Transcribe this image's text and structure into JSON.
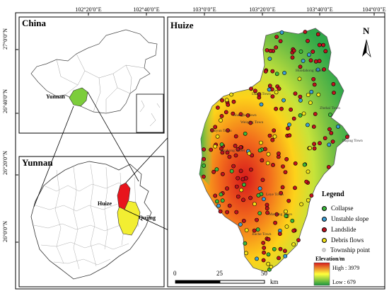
{
  "coords_top": [
    "102°20′0″E",
    "102°40′0″E",
    "103°0′0″E",
    "103°20′0″E",
    "103°40′0″E",
    "104°0′0″E"
  ],
  "coords_left": [
    "27°0′0″N",
    "26°40′0″N",
    "26°20′0″N",
    "26°0′0″N"
  ],
  "panels": {
    "china": {
      "title": "China",
      "region_label": "Yunnan"
    },
    "yunnan": {
      "title": "Yunnan",
      "county_label": "Huize",
      "city_label": "Qujing"
    },
    "huize": {
      "title": "Huize"
    }
  },
  "north_arrow": {
    "letter": "N"
  },
  "scale_bar": {
    "ticks": [
      "0",
      "25",
      "50"
    ],
    "unit": "km"
  },
  "legend": {
    "title": "Legend",
    "items": [
      {
        "label": "Collapse",
        "color": "#3cb83c"
      },
      {
        "label": "Unstable slope",
        "color": "#3b9fd6"
      },
      {
        "label": "Landslide",
        "color": "#c1121f"
      },
      {
        "label": "Debris flows",
        "color": "#f2e21a"
      },
      {
        "label": "Township point",
        "color": "#cfcfcf"
      }
    ],
    "elevation_title": "Elevation/m",
    "elevation_high": "High : 3979",
    "elevation_low": "Low : 679"
  },
  "towns": [
    "Huodahong Town",
    "Dahai Town",
    "Shanghe Town",
    "Zhehai Town",
    "Dajing Town",
    "Weiqing Town",
    "Zhiyun Town",
    "Jinzhong Street",
    "Leye Town",
    "Mawang Town",
    "Jiache Town"
  ],
  "colors": {
    "china_region": "#7ccd3b",
    "huize_region": "#e8141c",
    "qujing_region": "#f2ee32",
    "elev_high": "#d7191c",
    "elev_mid": "#ffff3c",
    "elev_low": "#1a9641"
  }
}
